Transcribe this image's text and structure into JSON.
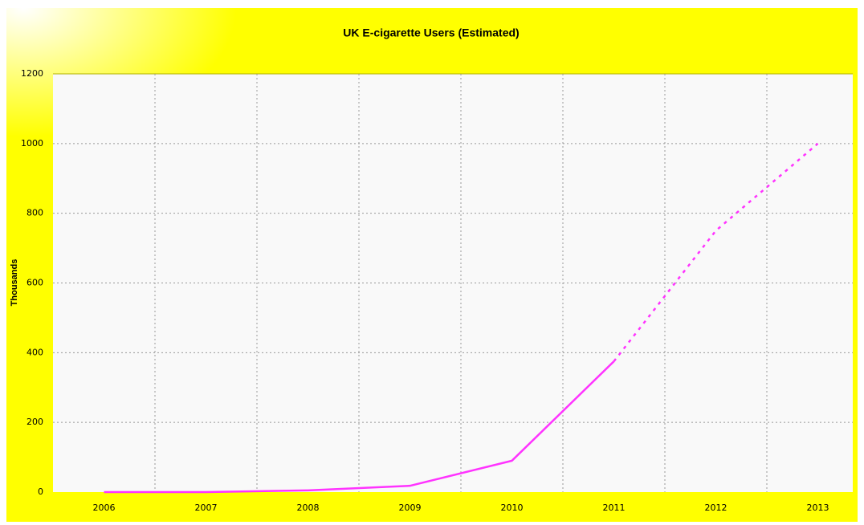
{
  "chart_data": {
    "type": "line",
    "title": "UK E-cigarette Users (Estimated)",
    "y_label": "Thousands",
    "categories": [
      "2006",
      "2007",
      "2008",
      "2009",
      "2010",
      "2011",
      "2012",
      "2013"
    ],
    "series": [
      {
        "color": "#ff33ff",
        "dashed": false,
        "values": [
          0,
          0,
          5,
          18,
          90,
          375,
          null,
          null
        ]
      },
      {
        "color": "#ff33ff",
        "dashed": true,
        "values": [
          null,
          null,
          null,
          null,
          null,
          375,
          750,
          1000
        ]
      }
    ],
    "ylim": [
      0,
      1200
    ],
    "yticks": [
      0,
      200,
      400,
      600,
      800,
      1000,
      1200
    ],
    "grid": true
  }
}
